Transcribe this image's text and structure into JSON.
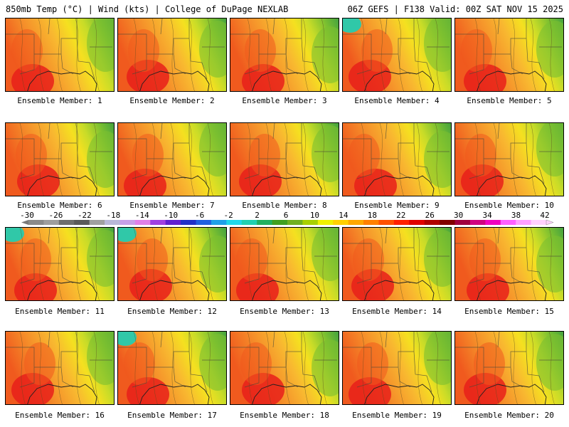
{
  "header": {
    "left": "850mb Temp (°C) | Wind (kts) | College of DuPage NEXLAB",
    "right": "06Z GEFS | F138 Valid: 00Z SAT NOV 15 2025"
  },
  "panels": [
    {
      "label": "Ensemble Member: 1"
    },
    {
      "label": "Ensemble Member: 2"
    },
    {
      "label": "Ensemble Member: 3"
    },
    {
      "label": "Ensemble Member: 4"
    },
    {
      "label": "Ensemble Member: 5"
    },
    {
      "label": "Ensemble Member: 6"
    },
    {
      "label": "Ensemble Member: 7"
    },
    {
      "label": "Ensemble Member: 8"
    },
    {
      "label": "Ensemble Member: 9"
    },
    {
      "label": "Ensemble Member: 10"
    },
    {
      "label": "Ensemble Member: 11"
    },
    {
      "label": "Ensemble Member: 12"
    },
    {
      "label": "Ensemble Member: 13"
    },
    {
      "label": "Ensemble Member: 14"
    },
    {
      "label": "Ensemble Member: 15"
    },
    {
      "label": "Ensemble Member: 16"
    },
    {
      "label": "Ensemble Member: 17"
    },
    {
      "label": "Ensemble Member: 18"
    },
    {
      "label": "Ensemble Member: 19"
    },
    {
      "label": "Ensemble Member: 20"
    }
  ],
  "colorbar": {
    "ticks": [
      "-30",
      "-26",
      "-22",
      "-18",
      "-14",
      "-10",
      "-6",
      "-2",
      "2",
      "6",
      "10",
      "14",
      "18",
      "22",
      "26",
      "30",
      "34",
      "38",
      "42"
    ],
    "colors": [
      "#8a8a8a",
      "#9e9e9e",
      "#6e6e6e",
      "#5a5a5a",
      "#a0a0a0",
      "#b8b8d8",
      "#c8a0e8",
      "#e080e8",
      "#a040e0",
      "#6020d0",
      "#2030c8",
      "#2060e0",
      "#20a0e8",
      "#20d8e8",
      "#20d0b0",
      "#20b060",
      "#40a020",
      "#70b020",
      "#a8d000",
      "#f0f000",
      "#ffd000",
      "#ffa800",
      "#ff8000",
      "#ff5000",
      "#ff2000",
      "#e00000",
      "#b00000",
      "#800000",
      "#a00040",
      "#d00080",
      "#f000c0",
      "#ff60ff",
      "#ffa0ff",
      "#ffd0ff"
    ]
  },
  "map_colors": {
    "red": "#e8201a",
    "orange_red": "#f05a1e",
    "orange": "#f5902a",
    "gold": "#f8b830",
    "yellow": "#f5e020",
    "yellow_green": "#c8dc28",
    "green": "#7cc030",
    "dark_green": "#3ea040",
    "teal": "#30c8a8"
  }
}
